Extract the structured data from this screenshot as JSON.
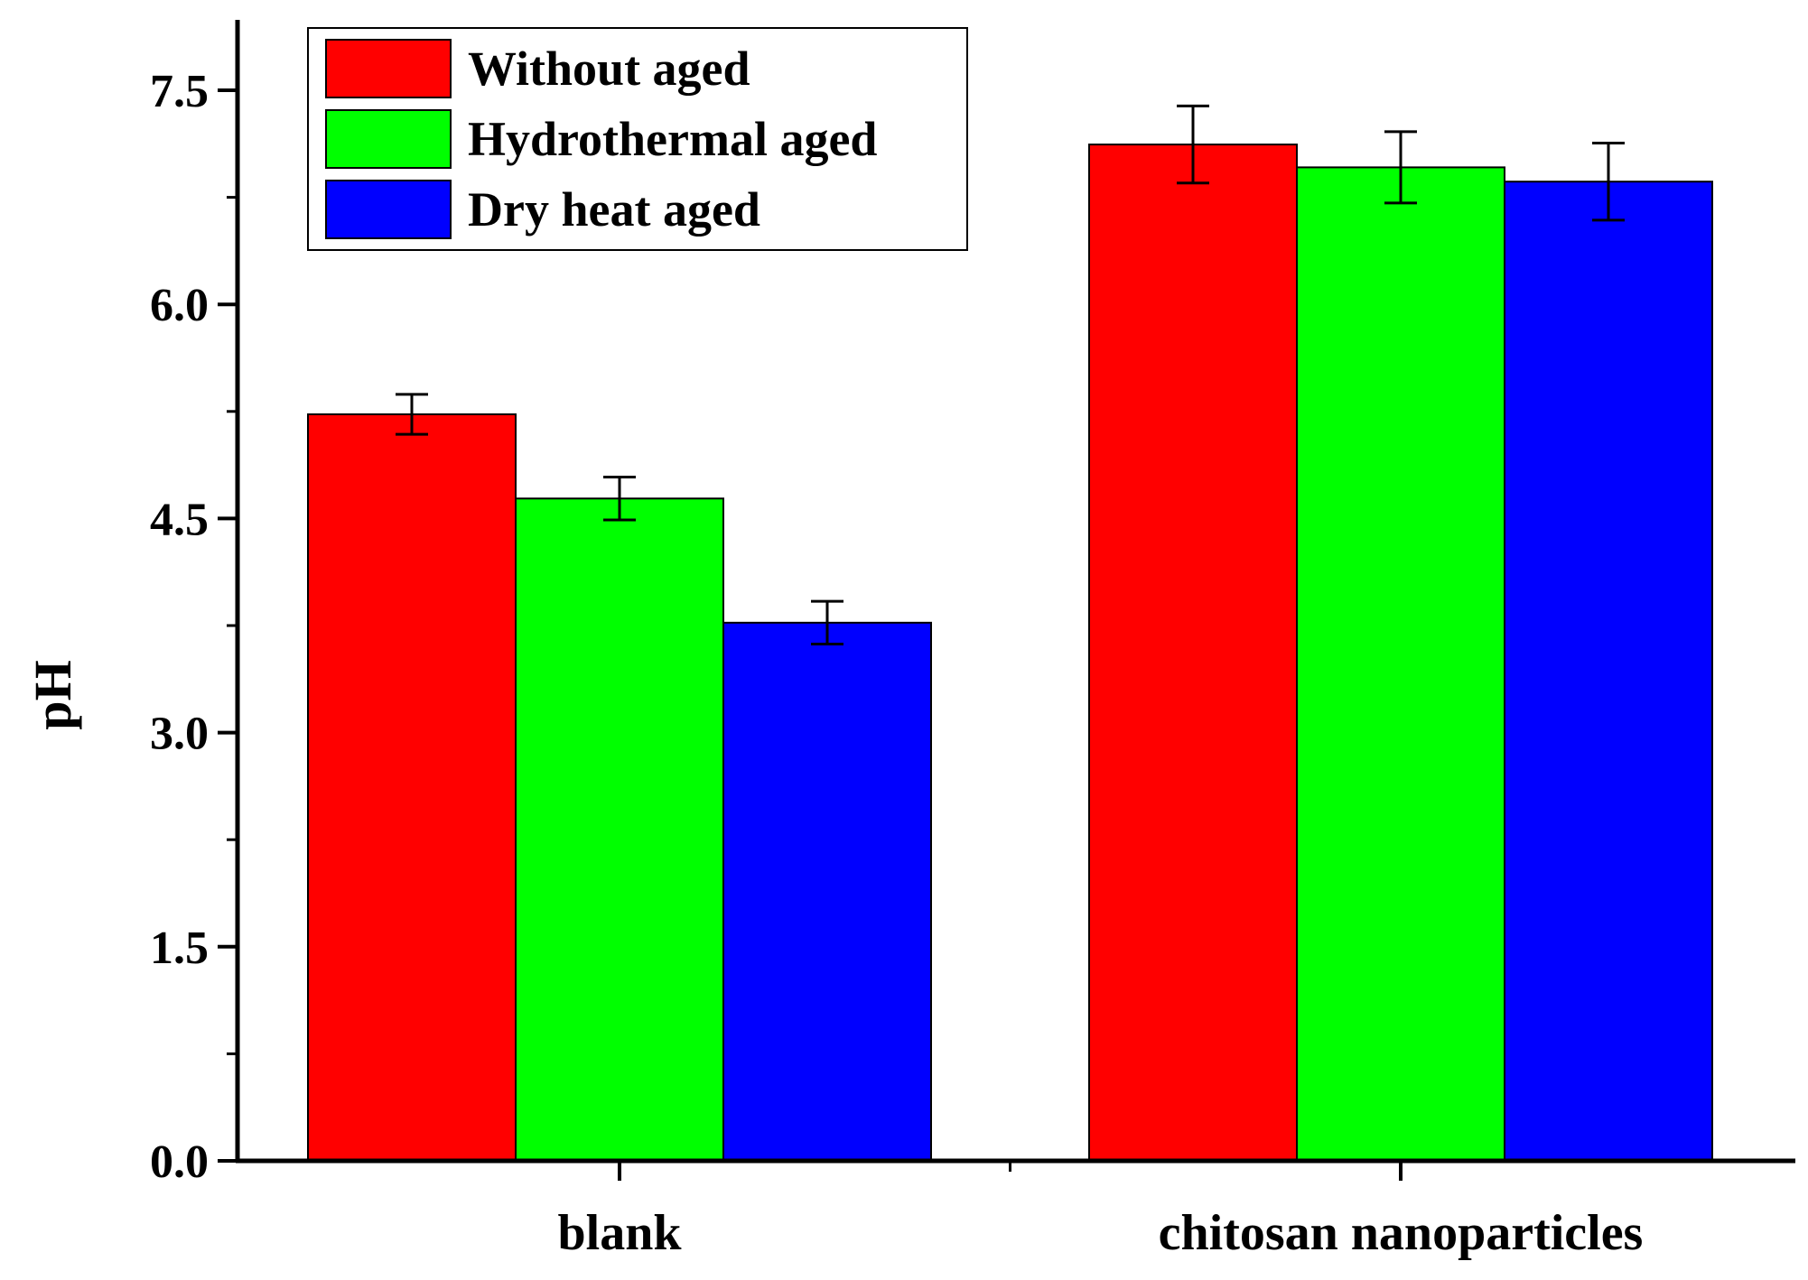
{
  "chart_data": {
    "type": "bar",
    "title": "",
    "xlabel": "",
    "ylabel": "pH",
    "ylim": [
      0,
      8.0
    ],
    "yticks": [
      0.0,
      1.5,
      3.0,
      4.5,
      6.0,
      7.5
    ],
    "ytick_labels": [
      "0.0",
      "1.5",
      "3.0",
      "4.5",
      "6.0",
      "7.5"
    ],
    "categories": [
      "blank",
      "chitosan nanoparticles"
    ],
    "legend_position": "top-left",
    "series": [
      {
        "name": "Without aged",
        "color": "#ff0000",
        "values": [
          5.23,
          7.12
        ],
        "errors": [
          0.14,
          0.27
        ]
      },
      {
        "name": "Hydrothermal aged",
        "color": "#00ff00",
        "values": [
          4.64,
          6.96
        ],
        "errors": [
          0.15,
          0.25
        ]
      },
      {
        "name": "Dry heat aged",
        "color": "#0000ff",
        "values": [
          3.77,
          6.86
        ],
        "errors": [
          0.15,
          0.27
        ]
      }
    ]
  }
}
